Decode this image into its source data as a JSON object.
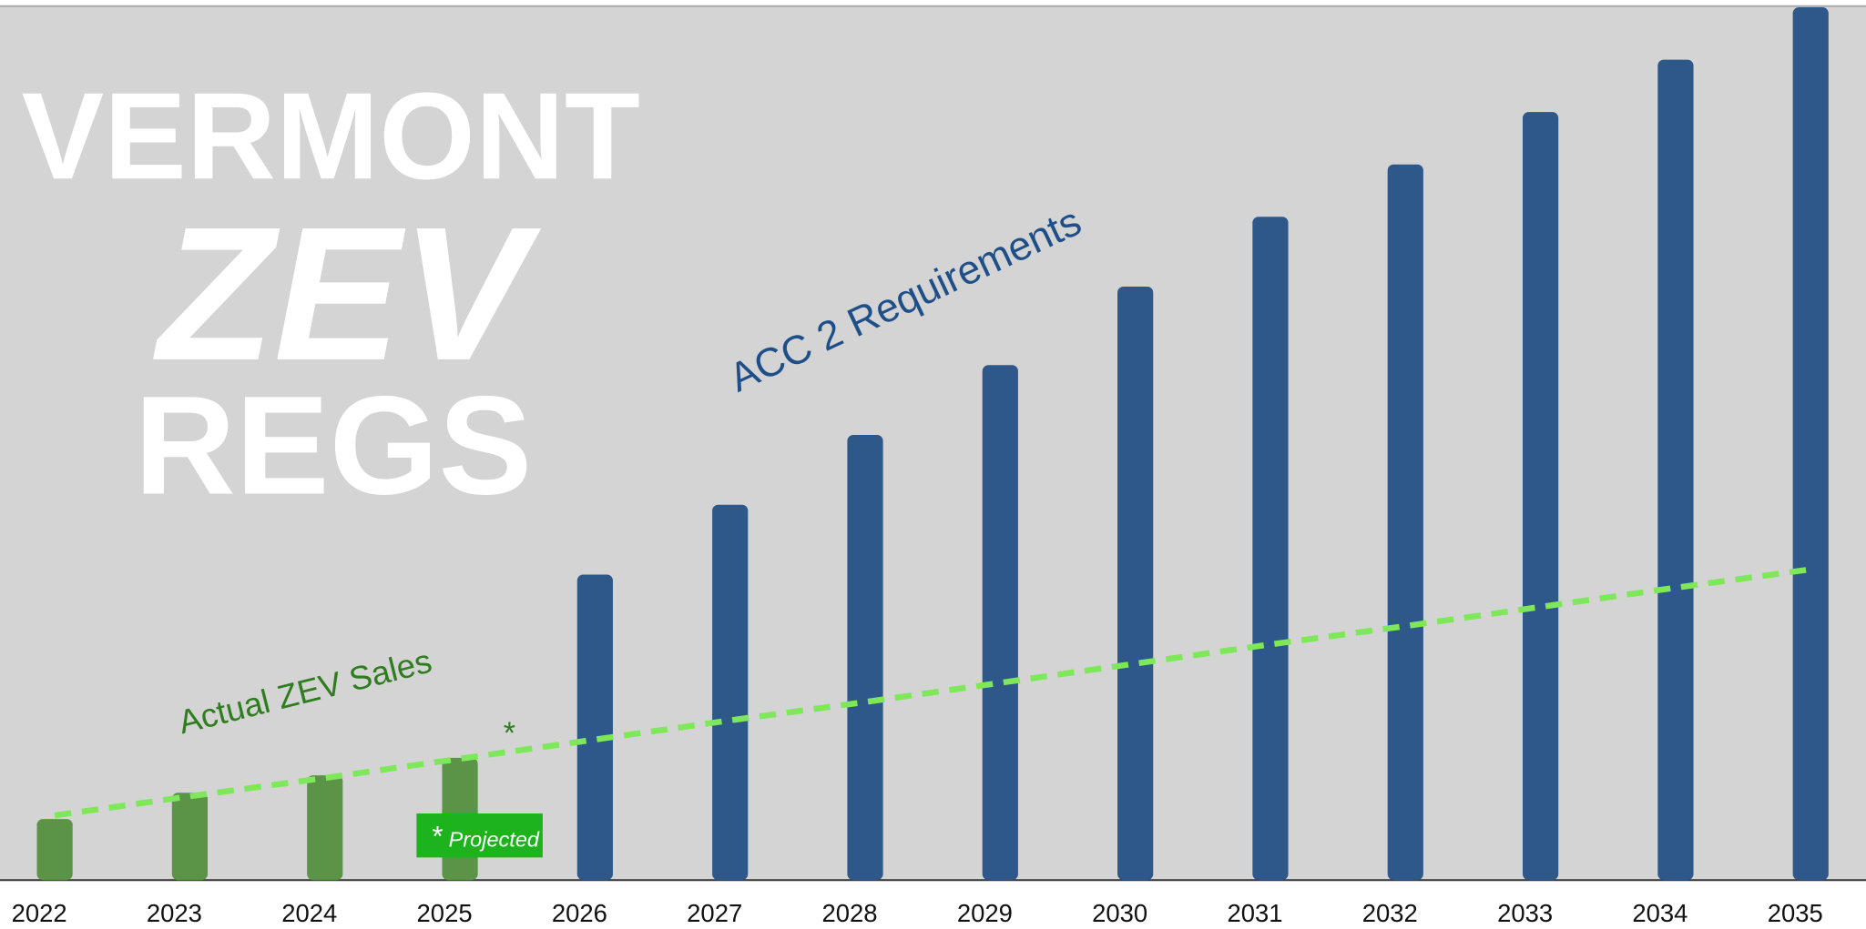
{
  "chart_data": {
    "type": "bar",
    "title_lines": [
      "VERMONT",
      "ZEV",
      "REGS"
    ],
    "annotations": {
      "requirements": "ACC 2 Requirements",
      "sales": "Actual ZEV Sales",
      "asterisk": "*",
      "projected_star": "*",
      "projected": "Projected"
    },
    "categories": [
      "2022",
      "2023",
      "2024",
      "2025",
      "2026",
      "2027",
      "2028",
      "2029",
      "2030",
      "2031",
      "2032",
      "2033",
      "2034",
      "2035"
    ],
    "values": [
      7,
      10,
      12,
      14,
      35,
      43,
      51,
      59,
      68,
      76,
      82,
      88,
      94,
      100
    ],
    "colors": [
      "#5b9447",
      "#5b9447",
      "#5b9447",
      "#5b9447",
      "#2e578a",
      "#2e578a",
      "#2e578a",
      "#2e578a",
      "#2e578a",
      "#2e578a",
      "#2e578a",
      "#2e578a",
      "#2e578a",
      "#2e578a"
    ],
    "trend": {
      "color": "#7ee85a",
      "values": [
        7.4,
        9.6,
        11.7,
        13.9,
        16.1,
        18.3,
        20.4,
        22.6,
        24.8,
        27,
        29.1,
        31.3,
        33.5,
        35.6
      ]
    },
    "ylim": [
      0,
      100
    ]
  }
}
